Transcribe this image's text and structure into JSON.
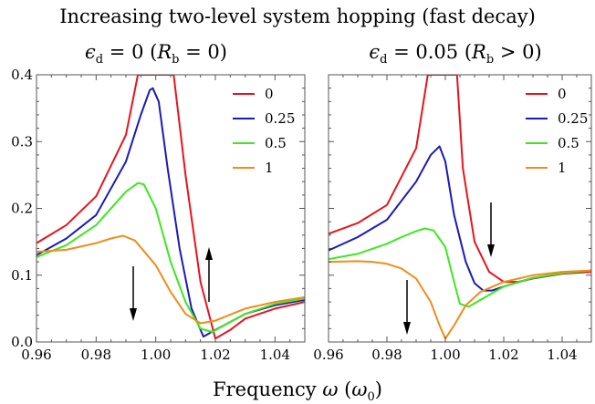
{
  "figure": {
    "title": "Increasing two-level system hopping (fast decay)",
    "xlabel": "Frequency ω (ω₀)"
  },
  "chart_data": [
    {
      "type": "line",
      "title": "ϵd = 0 (Rb = 0)",
      "xlim": [
        0.96,
        1.05
      ],
      "ylim": [
        0.0,
        0.4
      ],
      "xticks": [
        "0.96",
        "0.98",
        "1.00",
        "1.02",
        "1.04"
      ],
      "yticks": [
        "0.0",
        "0.1",
        "0.2",
        "0.3",
        "0.4"
      ],
      "legend_position": "top-right",
      "series": [
        {
          "name": "0",
          "color": "#e8141c",
          "x": [
            0.96,
            0.97,
            0.98,
            0.99,
            0.994,
            0.996,
            1.0,
            1.006,
            1.01,
            1.015,
            1.02,
            1.025,
            1.03,
            1.04,
            1.05
          ],
          "y": [
            0.148,
            0.175,
            0.218,
            0.31,
            0.4,
            0.4,
            0.4,
            0.4,
            0.25,
            0.09,
            0.005,
            0.018,
            0.035,
            0.05,
            0.06
          ]
        },
        {
          "name": "0.25",
          "color": "#1a1ab8",
          "x": [
            0.96,
            0.97,
            0.98,
            0.99,
            0.995,
            0.998,
            0.999,
            1.001,
            1.004,
            1.008,
            1.012,
            1.016,
            1.02,
            1.03,
            1.04,
            1.05
          ],
          "y": [
            0.13,
            0.155,
            0.19,
            0.27,
            0.34,
            0.377,
            0.38,
            0.36,
            0.26,
            0.14,
            0.05,
            0.008,
            0.018,
            0.042,
            0.055,
            0.063
          ]
        },
        {
          "name": "0.5",
          "color": "#3ee81e",
          "x": [
            0.96,
            0.97,
            0.98,
            0.99,
            0.994,
            0.996,
            1.0,
            1.005,
            1.01,
            1.015,
            1.019,
            1.025,
            1.03,
            1.04,
            1.05
          ],
          "y": [
            0.127,
            0.145,
            0.175,
            0.225,
            0.238,
            0.236,
            0.2,
            0.12,
            0.06,
            0.02,
            0.015,
            0.03,
            0.042,
            0.057,
            0.065
          ]
        },
        {
          "name": "1",
          "color": "#f08c1a",
          "x": [
            0.96,
            0.97,
            0.98,
            0.985,
            0.989,
            0.993,
            1.0,
            1.005,
            1.01,
            1.015,
            1.02,
            1.03,
            1.04,
            1.05
          ],
          "y": [
            0.135,
            0.138,
            0.148,
            0.155,
            0.159,
            0.152,
            0.115,
            0.075,
            0.042,
            0.028,
            0.032,
            0.05,
            0.06,
            0.067
          ]
        }
      ]
    },
    {
      "type": "line",
      "title": "ϵd = 0.05 (Rb > 0)",
      "xlim": [
        0.96,
        1.05
      ],
      "ylim": [
        0.0,
        0.4
      ],
      "xticks": [
        "0.96",
        "0.98",
        "1.00",
        "1.02",
        "1.04"
      ],
      "yticks": [
        "0.0",
        "0.1",
        "0.2",
        "0.3",
        "0.4"
      ],
      "legend_position": "top-right",
      "series": [
        {
          "name": "0",
          "color": "#e8141c",
          "x": [
            0.96,
            0.97,
            0.98,
            0.99,
            0.994,
            0.996,
            1.0,
            1.004,
            1.006,
            1.01,
            1.015,
            1.02,
            1.025,
            1.03,
            1.04,
            1.05
          ],
          "y": [
            0.162,
            0.178,
            0.205,
            0.29,
            0.4,
            0.4,
            0.4,
            0.4,
            0.26,
            0.15,
            0.105,
            0.09,
            0.09,
            0.095,
            0.102,
            0.105
          ]
        },
        {
          "name": "0.25",
          "color": "#1a1ab8",
          "x": [
            0.96,
            0.97,
            0.98,
            0.99,
            0.995,
            0.998,
            1.0,
            1.003,
            1.007,
            1.01,
            1.013,
            1.016,
            1.02,
            1.03,
            1.04,
            1.05
          ],
          "y": [
            0.137,
            0.157,
            0.183,
            0.24,
            0.28,
            0.293,
            0.27,
            0.19,
            0.12,
            0.088,
            0.077,
            0.077,
            0.083,
            0.096,
            0.103,
            0.107
          ]
        },
        {
          "name": "0.5",
          "color": "#3ee81e",
          "x": [
            0.96,
            0.97,
            0.98,
            0.985,
            0.99,
            0.993,
            0.996,
            1.0,
            1.003,
            1.005,
            1.008,
            1.012,
            1.02,
            1.03,
            1.04,
            1.05
          ],
          "y": [
            0.124,
            0.132,
            0.147,
            0.157,
            0.166,
            0.17,
            0.167,
            0.142,
            0.09,
            0.057,
            0.053,
            0.063,
            0.083,
            0.096,
            0.103,
            0.107
          ]
        },
        {
          "name": "1",
          "color": "#f08c1a",
          "x": [
            0.96,
            0.97,
            0.975,
            0.98,
            0.985,
            0.99,
            0.995,
            0.998,
            1.0,
            1.003,
            1.007,
            1.012,
            1.02,
            1.03,
            1.04,
            1.05
          ],
          "y": [
            0.12,
            0.121,
            0.12,
            0.117,
            0.11,
            0.095,
            0.06,
            0.025,
            0.005,
            0.025,
            0.055,
            0.075,
            0.09,
            0.1,
            0.105,
            0.107
          ]
        }
      ]
    }
  ]
}
